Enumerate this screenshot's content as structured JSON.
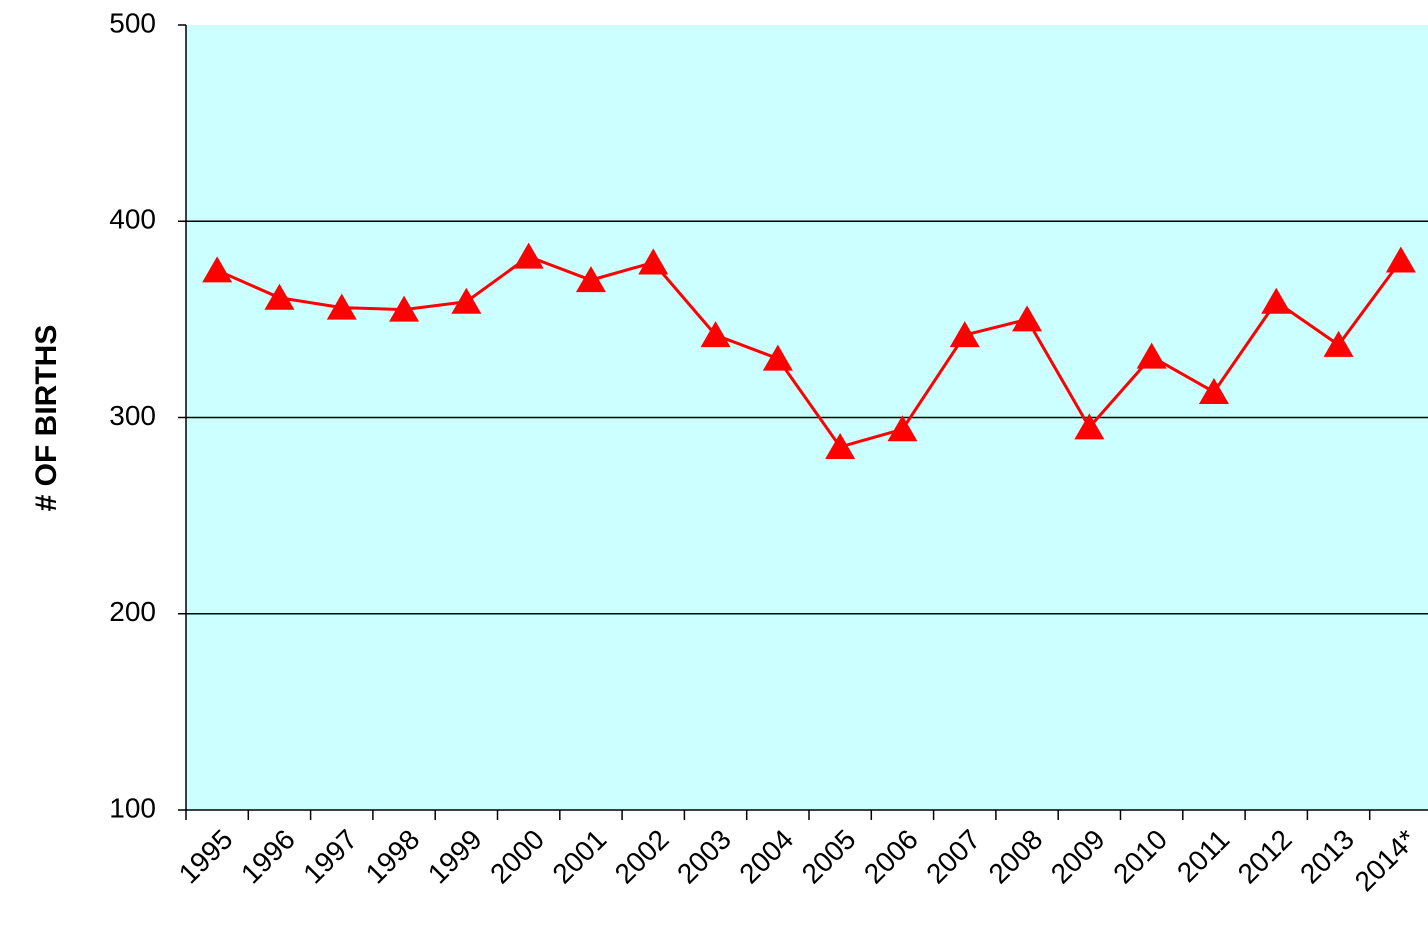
{
  "chart_data": {
    "type": "line",
    "y_label": "# OF BIRTHS",
    "categories": [
      "1995",
      "1996",
      "1997",
      "1998",
      "1999",
      "2000",
      "2001",
      "2002",
      "2003",
      "2004",
      "2005",
      "2006",
      "2007",
      "2008",
      "2009",
      "2010",
      "2011",
      "2012",
      "2013",
      "2014*"
    ],
    "series": [
      {
        "name": "Births",
        "color": "#ff0000",
        "values": [
          375,
          361,
          356,
          355,
          359,
          382,
          370,
          379,
          342,
          330,
          285,
          294,
          342,
          350,
          295,
          331,
          313,
          359,
          337,
          380
        ]
      }
    ],
    "ylim": [
      100,
      500
    ],
    "yticks": [
      100,
      200,
      300,
      400,
      500
    ],
    "grid": true,
    "background": "#ccffff"
  }
}
